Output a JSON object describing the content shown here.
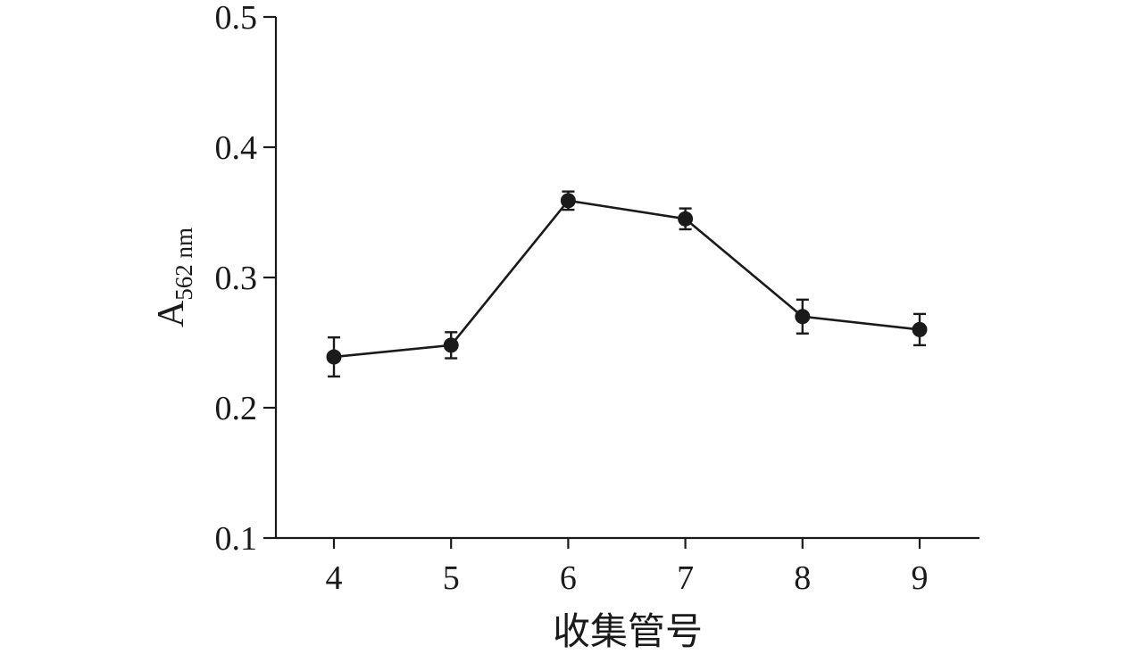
{
  "chart_data": {
    "type": "line",
    "title": "",
    "xlabel": "收集管号",
    "ylabel": "A",
    "ylabel_subscript": "562 nm",
    "x": [
      4,
      5,
      6,
      7,
      8,
      9
    ],
    "x_tick_labels": [
      "4",
      "5",
      "6",
      "7",
      "8",
      "9"
    ],
    "y_ticks": [
      0.1,
      0.2,
      0.3,
      0.4,
      0.5
    ],
    "y_tick_labels": [
      "0.1",
      "0.2",
      "0.3",
      "0.4",
      "0.5"
    ],
    "ylim": [
      0.1,
      0.5
    ],
    "grid": false,
    "legend": "none",
    "series": [
      {
        "values": [
          0.239,
          0.248,
          0.359,
          0.345,
          0.27,
          0.26
        ],
        "error": [
          0.015,
          0.01,
          0.007,
          0.008,
          0.013,
          0.012
        ],
        "color": "#1a1a1a",
        "marker": "filled-circle"
      }
    ]
  }
}
